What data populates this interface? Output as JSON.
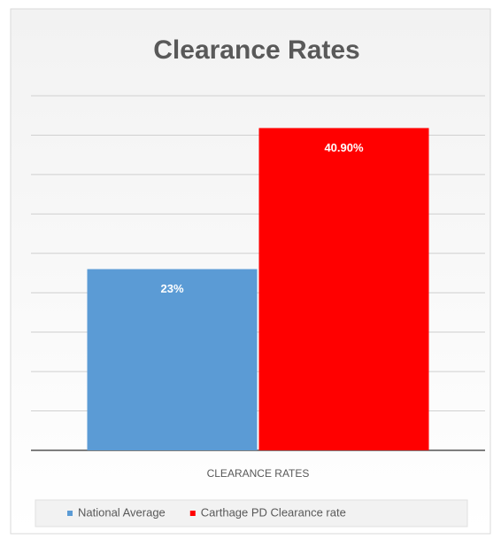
{
  "chart_data": {
    "type": "bar",
    "title": "Clearance Rates",
    "categories": [
      "CLEARANCE RATES"
    ],
    "series": [
      {
        "name": "National Average",
        "color": "#5b9bd5",
        "values": [
          23
        ],
        "value_labels": [
          "23%"
        ]
      },
      {
        "name": "Carthage PD Clearance rate",
        "color": "#ff0000",
        "values": [
          40.9
        ],
        "value_labels": [
          "40.90%"
        ]
      }
    ],
    "ylim": [
      0,
      45
    ],
    "yticks": [
      0,
      5,
      10,
      15,
      20,
      25,
      30,
      35,
      40,
      45
    ],
    "grid": true,
    "legend": "bottom"
  }
}
